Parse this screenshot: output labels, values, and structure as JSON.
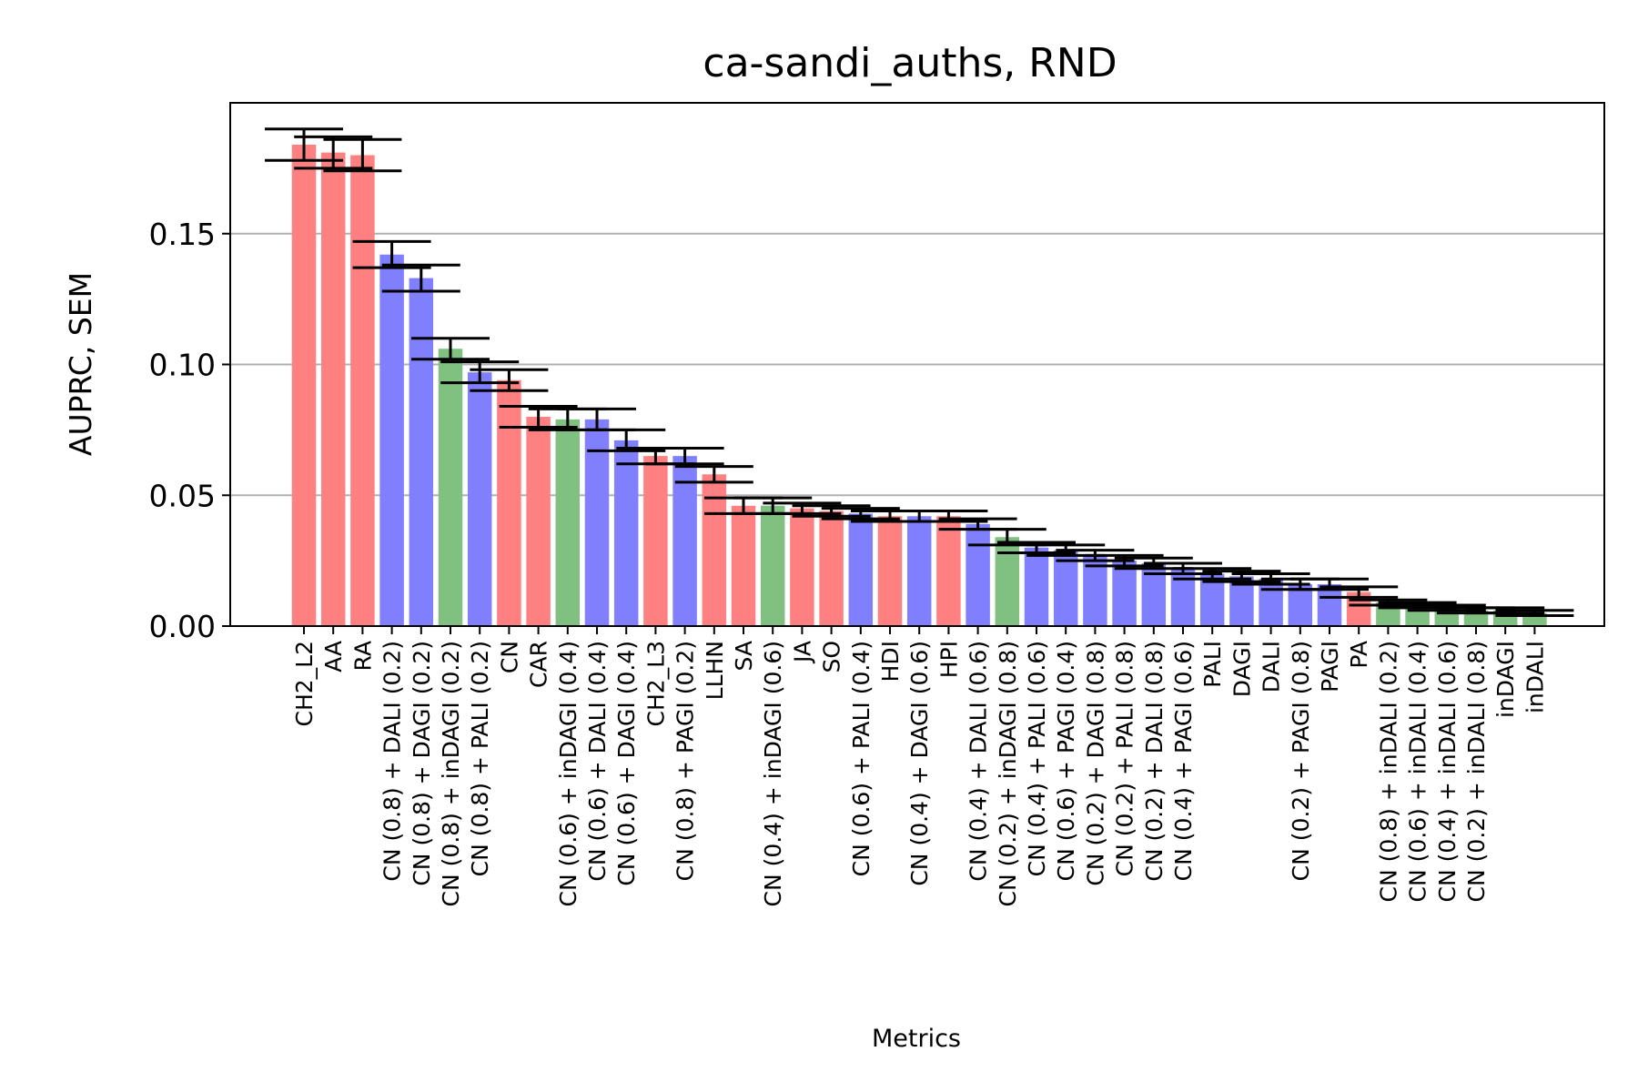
{
  "chart_data": {
    "type": "bar",
    "title": "ca-sandi_auths, RND",
    "xlabel": "Metrics",
    "ylabel": "AUPRC, SEM",
    "ylim": [
      0,
      0.2
    ],
    "yticks": [
      "0.00",
      "0.05",
      "0.10",
      "0.15"
    ],
    "grid": "horizontal",
    "colors": {
      "red": "#ff8080",
      "blue": "#8080ff",
      "green": "#80c080"
    },
    "categories": [
      "CH2_L2",
      "AA",
      "RA",
      "CN (0.8) + DALI (0.2)",
      "CN (0.8) + DAGI (0.2)",
      "CN (0.8) + inDAGI (0.2)",
      "CN (0.8) + PALI (0.2)",
      "CN",
      "CAR",
      "CN (0.6) + inDAGI (0.4)",
      "CN (0.6) + DALI (0.4)",
      "CN (0.6) + DAGI (0.4)",
      "CH2_L3",
      "CN (0.8) + PAGI (0.2)",
      "LLHN",
      "SA",
      "CN (0.4) + inDAGI (0.6)",
      "JA",
      "SO",
      "CN (0.6) + PALI (0.4)",
      "HDI",
      "CN (0.4) + DAGI (0.6)",
      "HPI",
      "CN (0.4) + DALI (0.6)",
      "CN (0.2) + inDAGI (0.8)",
      "CN (0.4) + PALI (0.6)",
      "CN (0.6) + PAGI (0.4)",
      "CN (0.2) + DAGI (0.8)",
      "CN (0.2) + PALI (0.8)",
      "CN (0.2) + DALI (0.8)",
      "CN (0.4) + PAGI (0.6)",
      "PALI",
      "DAGI",
      "DALI",
      "CN (0.2) + PAGI (0.8)",
      "PAGI",
      "PA",
      "CN (0.8) + inDALI (0.2)",
      "CN (0.6) + inDALI (0.4)",
      "CN (0.4) + inDALI (0.6)",
      "CN (0.2) + inDALI (0.8)",
      "inDAGI",
      "inDALI"
    ],
    "values": [
      0.184,
      0.181,
      0.18,
      0.142,
      0.133,
      0.106,
      0.097,
      0.094,
      0.08,
      0.079,
      0.079,
      0.071,
      0.065,
      0.065,
      0.058,
      0.046,
      0.046,
      0.045,
      0.044,
      0.043,
      0.042,
      0.042,
      0.042,
      0.039,
      0.034,
      0.03,
      0.029,
      0.027,
      0.025,
      0.024,
      0.022,
      0.02,
      0.019,
      0.018,
      0.016,
      0.016,
      0.013,
      0.009,
      0.008,
      0.007,
      0.006,
      0.006,
      0.005
    ],
    "errors": [
      0.006,
      0.006,
      0.006,
      0.005,
      0.005,
      0.004,
      0.004,
      0.004,
      0.004,
      0.004,
      0.004,
      0.004,
      0.003,
      0.003,
      0.003,
      0.003,
      0.003,
      0.002,
      0.002,
      0.002,
      0.002,
      0.002,
      0.002,
      0.002,
      0.003,
      0.002,
      0.002,
      0.002,
      0.002,
      0.002,
      0.002,
      0.002,
      0.002,
      0.002,
      0.002,
      0.002,
      0.002,
      0.001,
      0.001,
      0.001,
      0.001,
      0.001,
      0.001
    ],
    "bar_colors": [
      "red",
      "red",
      "red",
      "blue",
      "blue",
      "green",
      "blue",
      "red",
      "red",
      "green",
      "blue",
      "blue",
      "red",
      "blue",
      "red",
      "red",
      "green",
      "red",
      "red",
      "blue",
      "red",
      "blue",
      "red",
      "blue",
      "green",
      "blue",
      "blue",
      "blue",
      "blue",
      "blue",
      "blue",
      "blue",
      "blue",
      "blue",
      "blue",
      "blue",
      "red",
      "green",
      "green",
      "green",
      "green",
      "green",
      "green"
    ]
  }
}
